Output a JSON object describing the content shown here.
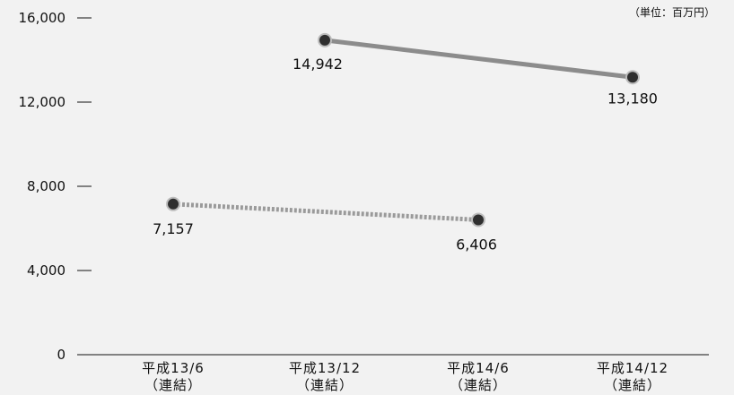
{
  "chart_data": {
    "type": "line",
    "unit": "（単位：百万円）",
    "categories": [
      [
        "平成13/6",
        "（連結）"
      ],
      [
        "平成13/12",
        "（連結）"
      ],
      [
        "平成14/6",
        "（連結）"
      ],
      [
        "平成14/12",
        "（連結）"
      ]
    ],
    "y_ticks": [
      "0",
      "4,000",
      "8,000",
      "12,000",
      "16,000"
    ],
    "ylim": [
      0,
      16000
    ],
    "grid": false,
    "series": [
      {
        "style": "dotted",
        "color": "#9a9a9a",
        "points": [
          {
            "category_index": 0,
            "value": 7157,
            "label": "7,157"
          },
          {
            "category_index": 2,
            "value": 6406,
            "label": "6,406"
          }
        ]
      },
      {
        "style": "solid",
        "color": "#8c8c8c",
        "points": [
          {
            "category_index": 1,
            "value": 14942,
            "label": "14,942"
          },
          {
            "category_index": 3,
            "value": 13180,
            "label": "13,180"
          }
        ]
      }
    ],
    "colors": {
      "marker_fill": "#2f2f2f",
      "marker_ring": "#bdbdbd",
      "axis": "#111111",
      "background": "#f2f2f2"
    }
  }
}
